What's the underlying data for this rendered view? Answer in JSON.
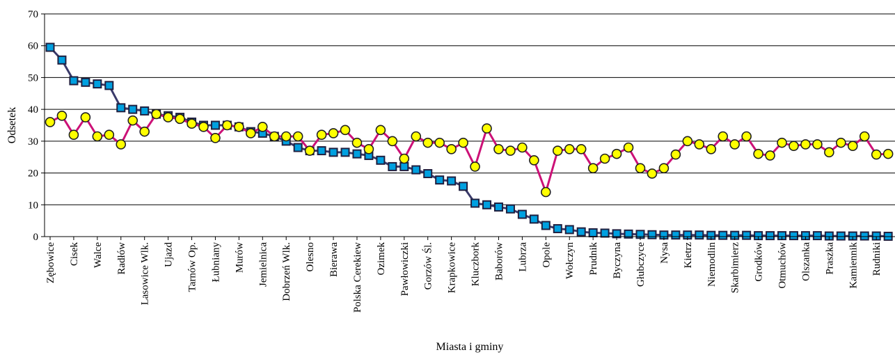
{
  "chart_data": {
    "type": "line",
    "title": "",
    "xlabel": "Miasta i gminy",
    "ylabel": "Odsetek",
    "ylim": [
      0,
      70
    ],
    "yticks": [
      0,
      10,
      20,
      30,
      40,
      50,
      60,
      70
    ],
    "grid": true,
    "legend": "none",
    "category_count": 72,
    "tick_labels": [
      {
        "index": 0,
        "label": "Zębowice"
      },
      {
        "index": 2,
        "label": "Cisek"
      },
      {
        "index": 4,
        "label": "Walce"
      },
      {
        "index": 6,
        "label": "Radłów"
      },
      {
        "index": 8,
        "label": "Lasowice Wlk."
      },
      {
        "index": 10,
        "label": "Ujazd"
      },
      {
        "index": 12,
        "label": "Tarnów Op."
      },
      {
        "index": 14,
        "label": "Łubniany"
      },
      {
        "index": 16,
        "label": "Murów"
      },
      {
        "index": 18,
        "label": "Jemielnica"
      },
      {
        "index": 20,
        "label": "Dobrzeń Wlk."
      },
      {
        "index": 22,
        "label": "Olesno"
      },
      {
        "index": 24,
        "label": "Bierawa"
      },
      {
        "index": 26,
        "label": "Polska Cerekiew"
      },
      {
        "index": 28,
        "label": "Ozimek"
      },
      {
        "index": 30,
        "label": "Pawłowiczki"
      },
      {
        "index": 32,
        "label": "Gorzów Śl."
      },
      {
        "index": 34,
        "label": "Krapkowice"
      },
      {
        "index": 36,
        "label": "Kluczbork"
      },
      {
        "index": 38,
        "label": "Baborów"
      },
      {
        "index": 40,
        "label": "Lubrza"
      },
      {
        "index": 42,
        "label": "Opole"
      },
      {
        "index": 44,
        "label": "Wołczyn"
      },
      {
        "index": 46,
        "label": "Prudnik"
      },
      {
        "index": 48,
        "label": "Byczyna"
      },
      {
        "index": 50,
        "label": "Głubczyce"
      },
      {
        "index": 52,
        "label": "Nysa"
      },
      {
        "index": 54,
        "label": "Kietrz"
      },
      {
        "index": 56,
        "label": "Niemodlin"
      },
      {
        "index": 58,
        "label": "Skarbimierz"
      },
      {
        "index": 60,
        "label": "Grodków"
      },
      {
        "index": 62,
        "label": "Otmuchów"
      },
      {
        "index": 64,
        "label": "Olszanka"
      },
      {
        "index": 66,
        "label": "Praszka"
      },
      {
        "index": 68,
        "label": "Kamiennik"
      },
      {
        "index": 70,
        "label": "Rudniki"
      }
    ],
    "series": [
      {
        "marker": "square",
        "color": "#00a0e0",
        "line_color": "#3a3a6a",
        "values": [
          59.5,
          55.5,
          49,
          48.5,
          48,
          47.5,
          40.5,
          40,
          39.5,
          38.5,
          38,
          37.5,
          36,
          35,
          35,
          35,
          34.5,
          33,
          32.5,
          31.5,
          30,
          28,
          27,
          27,
          26.5,
          26.5,
          26,
          25.5,
          24,
          22,
          22,
          21,
          19.8,
          17.8,
          17.5,
          15.8,
          10.5,
          10,
          9.3,
          8.7,
          7,
          5.5,
          3.5,
          2.5,
          2.2,
          1.5,
          1.2,
          1.1,
          0.9,
          0.8,
          0.7,
          0.6,
          0.5,
          0.5,
          0.5,
          0.5,
          0.4,
          0.4,
          0.4,
          0.4,
          0.3,
          0.3,
          0.3,
          0.3,
          0.3,
          0.3,
          0.2,
          0.2,
          0.2,
          0.2,
          0.2,
          0.1
        ]
      },
      {
        "marker": "circle",
        "color": "#ffff00",
        "line_color": "#cc1177",
        "values": [
          36,
          38,
          32,
          37.5,
          31.5,
          32,
          29,
          36.5,
          33,
          38.5,
          37.5,
          37,
          35.5,
          34.5,
          31,
          35,
          34.5,
          32.5,
          34.5,
          31.5,
          31.5,
          31.5,
          27,
          32,
          32.5,
          33.5,
          29.5,
          27.5,
          33.5,
          30,
          24.5,
          31.5,
          29.5,
          29.5,
          27.5,
          29.5,
          22,
          34,
          27.5,
          27,
          28,
          24,
          14,
          27,
          27.5,
          27.5,
          21.5,
          24.5,
          26,
          28,
          21.5,
          19.8,
          21.5,
          25.8,
          30,
          29,
          27.5,
          31.5,
          29,
          31.5,
          26,
          25.5,
          29.5,
          28.5,
          29,
          29,
          26.5,
          29.5,
          28.5,
          31.5,
          25.8,
          26
        ]
      }
    ]
  }
}
